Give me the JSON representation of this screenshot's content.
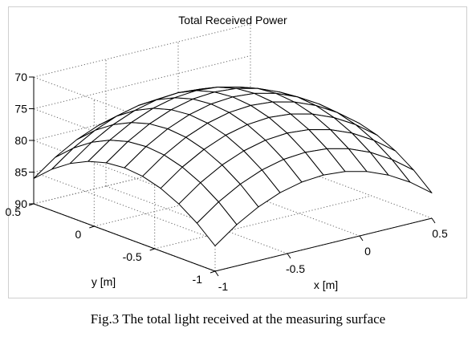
{
  "caption": "Fig.3 The total light received at the measuring surface",
  "chart_data": {
    "type": "surface",
    "title": "Total Received Power",
    "xlabel": "x [m]",
    "ylabel": "y [m]",
    "zlabel": "",
    "xlim": [
      -1,
      0.5
    ],
    "ylim": [
      -1,
      0.5
    ],
    "zlim": [
      70,
      90
    ],
    "z_axis_reversed": true,
    "x_ticks": [
      -1,
      -0.5,
      0,
      0.5
    ],
    "x_tick_labels": [
      "-1",
      "-0.5",
      "0",
      "0.5"
    ],
    "y_ticks": [
      -1,
      -0.5,
      0,
      0.5
    ],
    "y_tick_labels": [
      "-1",
      "-0.5",
      "0",
      "0.5"
    ],
    "z_ticks": [
      70,
      75,
      80,
      85,
      90
    ],
    "z_tick_labels": [
      "70",
      "75",
      "80",
      "85",
      "90"
    ],
    "grid": true,
    "surface": {
      "mesh": "11x11",
      "shape": "dome",
      "peak_z": 72,
      "corner_z": 86
    }
  }
}
